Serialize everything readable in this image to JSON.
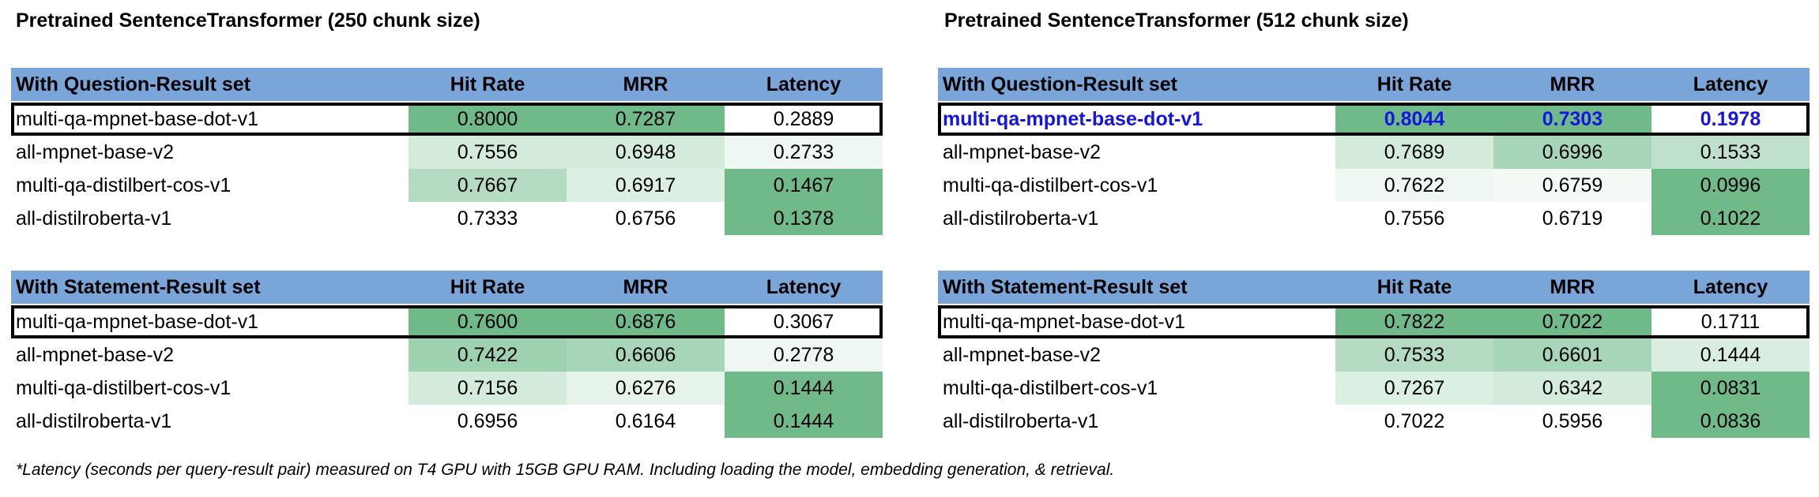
{
  "panels": [
    {
      "title": "Pretrained SentenceTransformer (250 chunk size)",
      "tables": [
        {
          "header": [
            "With Question-Result set",
            "Hit Rate",
            "MRR",
            "Latency"
          ],
          "rows": [
            {
              "name": "multi-qa-mpnet-base-dot-v1",
              "hit": "0.8000",
              "mrr": "0.7287",
              "lat": "0.2889",
              "hit_bg": "#70b989",
              "mrr_bg": "#70b989",
              "lat_bg": "#ffffff",
              "selected": true,
              "highlight": false
            },
            {
              "name": "all-mpnet-base-v2",
              "hit": "0.7556",
              "mrr": "0.6948",
              "lat": "0.2733",
              "hit_bg": "#d4ebdc",
              "mrr_bg": "#d4ebdc",
              "lat_bg": "#eef7f1",
              "selected": false,
              "highlight": false
            },
            {
              "name": "multi-qa-distilbert-cos-v1",
              "hit": "0.7667",
              "mrr": "0.6917",
              "lat": "0.1467",
              "hit_bg": "#b5dcc2",
              "mrr_bg": "#dcefe3",
              "lat_bg": "#70b989",
              "selected": false,
              "highlight": false
            },
            {
              "name": "all-distilroberta-v1",
              "hit": "0.7333",
              "mrr": "0.6756",
              "lat": "0.1378",
              "hit_bg": "#ffffff",
              "mrr_bg": "#ffffff",
              "lat_bg": "#70b989",
              "selected": false,
              "highlight": false
            }
          ]
        },
        {
          "header": [
            "With Statement-Result set",
            "Hit Rate",
            "MRR",
            "Latency"
          ],
          "rows": [
            {
              "name": "multi-qa-mpnet-base-dot-v1",
              "hit": "0.7600",
              "mrr": "0.6876",
              "lat": "0.3067",
              "hit_bg": "#70b989",
              "mrr_bg": "#70b989",
              "lat_bg": "#ffffff",
              "selected": true,
              "highlight": false
            },
            {
              "name": "all-mpnet-base-v2",
              "hit": "0.7422",
              "mrr": "0.6606",
              "lat": "0.2778",
              "hit_bg": "#9dd1b0",
              "mrr_bg": "#a6d5b7",
              "lat_bg": "#eef7f1",
              "selected": false,
              "highlight": false
            },
            {
              "name": "multi-qa-distilbert-cos-v1",
              "hit": "0.7156",
              "mrr": "0.6276",
              "lat": "0.1444",
              "hit_bg": "#d4ebdc",
              "mrr_bg": "#e6f3ea",
              "lat_bg": "#70b989",
              "selected": false,
              "highlight": false
            },
            {
              "name": "all-distilroberta-v1",
              "hit": "0.6956",
              "mrr": "0.6164",
              "lat": "0.1444",
              "hit_bg": "#ffffff",
              "mrr_bg": "#ffffff",
              "lat_bg": "#70b989",
              "selected": false,
              "highlight": false
            }
          ]
        }
      ]
    },
    {
      "title": "Pretrained SentenceTransformer (512 chunk size)",
      "tables": [
        {
          "header": [
            "With Question-Result set",
            "Hit Rate",
            "MRR",
            "Latency"
          ],
          "rows": [
            {
              "name": "multi-qa-mpnet-base-dot-v1",
              "hit": "0.8044",
              "mrr": "0.7303",
              "lat": "0.1978",
              "hit_bg": "#70b989",
              "mrr_bg": "#70b989",
              "lat_bg": "#ffffff",
              "selected": true,
              "highlight": true
            },
            {
              "name": "all-mpnet-base-v2",
              "hit": "0.7689",
              "mrr": "0.6996",
              "lat": "0.1533",
              "hit_bg": "#d4ebdc",
              "mrr_bg": "#a6d5b7",
              "lat_bg": "#bfe1cb",
              "selected": false,
              "highlight": false
            },
            {
              "name": "multi-qa-distilbert-cos-v1",
              "hit": "0.7622",
              "mrr": "0.6759",
              "lat": "0.0996",
              "hit_bg": "#eef7f1",
              "mrr_bg": "#f3f9f5",
              "lat_bg": "#70b989",
              "selected": false,
              "highlight": false
            },
            {
              "name": "all-distilroberta-v1",
              "hit": "0.7556",
              "mrr": "0.6719",
              "lat": "0.1022",
              "hit_bg": "#ffffff",
              "mrr_bg": "#ffffff",
              "lat_bg": "#70b989",
              "selected": false,
              "highlight": false
            }
          ]
        },
        {
          "header": [
            "With Statement-Result set",
            "Hit Rate",
            "MRR",
            "Latency"
          ],
          "rows": [
            {
              "name": "multi-qa-mpnet-base-dot-v1",
              "hit": "0.7822",
              "mrr": "0.7022",
              "lat": "0.1711",
              "hit_bg": "#70b989",
              "mrr_bg": "#70b989",
              "lat_bg": "#ffffff",
              "selected": true,
              "highlight": false
            },
            {
              "name": "all-mpnet-base-v2",
              "hit": "0.7533",
              "mrr": "0.6601",
              "lat": "0.1444",
              "hit_bg": "#b5dcc2",
              "mrr_bg": "#a6d5b7",
              "lat_bg": "#d9eee0",
              "selected": false,
              "highlight": false
            },
            {
              "name": "multi-qa-distilbert-cos-v1",
              "hit": "0.7267",
              "mrr": "0.6342",
              "lat": "0.0831",
              "hit_bg": "#dcefe3",
              "mrr_bg": "#d4ebdc",
              "lat_bg": "#70b989",
              "selected": false,
              "highlight": false
            },
            {
              "name": "all-distilroberta-v1",
              "hit": "0.7022",
              "mrr": "0.5956",
              "lat": "0.0836",
              "hit_bg": "#ffffff",
              "mrr_bg": "#ffffff",
              "lat_bg": "#70b989",
              "selected": false,
              "highlight": false
            }
          ]
        }
      ]
    }
  ],
  "colors": {
    "header_bg": "#7aa5d9",
    "best_green": "#70b989",
    "highlight_text": "#1515e0"
  },
  "footnote": "*Latency (seconds per query-result pair) measured on T4 GPU with 15GB GPU RAM. Including loading the model, embedding generation, & retrieval."
}
